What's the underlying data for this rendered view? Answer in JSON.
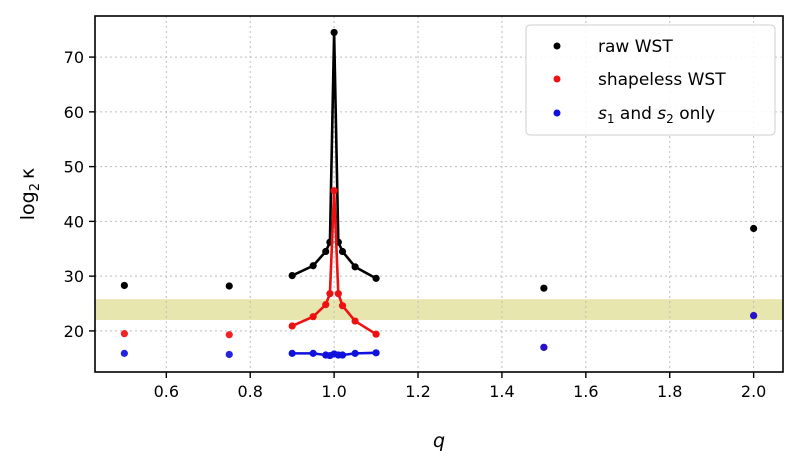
{
  "chart_data": {
    "type": "scatter",
    "xlabel": "q",
    "ylabel": "log",
    "ylabel_sub": "2",
    "ylabel_symbol": "κ",
    "xlim": [
      0.43,
      2.07
    ],
    "ylim": [
      12.5,
      77.5
    ],
    "xticks": [
      0.6,
      0.8,
      1.0,
      1.2,
      1.4,
      1.6,
      1.8,
      2.0
    ],
    "xtick_labels": [
      "0.6",
      "0.8",
      "1.0",
      "1.2",
      "1.4",
      "1.6",
      "1.8",
      "2.0"
    ],
    "yticks": [
      20,
      30,
      40,
      50,
      60,
      70
    ],
    "ytick_labels": [
      "20",
      "30",
      "40",
      "50",
      "60",
      "70"
    ],
    "grid": true,
    "legend_position": "top-right",
    "band": {
      "y_range": [
        22,
        25.8
      ],
      "color": "#e6e3a6"
    },
    "legend": [
      {
        "label": "raw WST",
        "color": "#000000"
      },
      {
        "label": "shapeless WST",
        "color": "#ee1111"
      },
      {
        "label_parts": [
          "s",
          "1",
          " and ",
          "s",
          "2",
          " only"
        ],
        "color": "#1111dd"
      }
    ],
    "series": [
      {
        "color": "#000000",
        "lone_points": [
          {
            "x": 0.5,
            "y": 28.3
          },
          {
            "x": 0.75,
            "y": 28.2
          },
          {
            "x": 1.5,
            "y": 27.8
          },
          {
            "x": 2.0,
            "y": 38.7
          }
        ],
        "connected": [
          {
            "x": 0.9,
            "y": 30.1
          },
          {
            "x": 0.95,
            "y": 31.9
          },
          {
            "x": 0.98,
            "y": 34.5
          },
          {
            "x": 0.99,
            "y": 36.2
          },
          {
            "x": 1.0,
            "y": 74.5
          },
          {
            "x": 1.01,
            "y": 36.2
          },
          {
            "x": 1.02,
            "y": 34.5
          },
          {
            "x": 1.05,
            "y": 31.7
          },
          {
            "x": 1.1,
            "y": 29.6
          }
        ]
      },
      {
        "color": "#ee1111",
        "lone_points": [
          {
            "x": 0.5,
            "y": 19.5
          },
          {
            "x": 0.75,
            "y": 19.3
          },
          {
            "x": 1.5,
            "y": 17.0
          },
          {
            "x": 2.0,
            "y": 22.8
          }
        ],
        "connected": [
          {
            "x": 0.9,
            "y": 20.9
          },
          {
            "x": 0.95,
            "y": 22.6
          },
          {
            "x": 0.98,
            "y": 24.8
          },
          {
            "x": 0.99,
            "y": 26.8
          },
          {
            "x": 1.0,
            "y": 45.6
          },
          {
            "x": 1.01,
            "y": 26.8
          },
          {
            "x": 1.02,
            "y": 24.6
          },
          {
            "x": 1.05,
            "y": 21.8
          },
          {
            "x": 1.1,
            "y": 19.4
          }
        ]
      },
      {
        "color": "#1111dd",
        "lone_points": [
          {
            "x": 0.5,
            "y": 15.9
          },
          {
            "x": 0.75,
            "y": 15.7
          },
          {
            "x": 1.5,
            "y": 17.0
          },
          {
            "x": 2.0,
            "y": 22.8
          }
        ],
        "connected": [
          {
            "x": 0.9,
            "y": 15.9
          },
          {
            "x": 0.95,
            "y": 15.9
          },
          {
            "x": 0.98,
            "y": 15.6
          },
          {
            "x": 0.99,
            "y": 15.5
          },
          {
            "x": 1.0,
            "y": 15.8
          },
          {
            "x": 1.01,
            "y": 15.6
          },
          {
            "x": 1.02,
            "y": 15.6
          },
          {
            "x": 1.05,
            "y": 15.9
          },
          {
            "x": 1.1,
            "y": 16.0
          }
        ]
      }
    ]
  }
}
